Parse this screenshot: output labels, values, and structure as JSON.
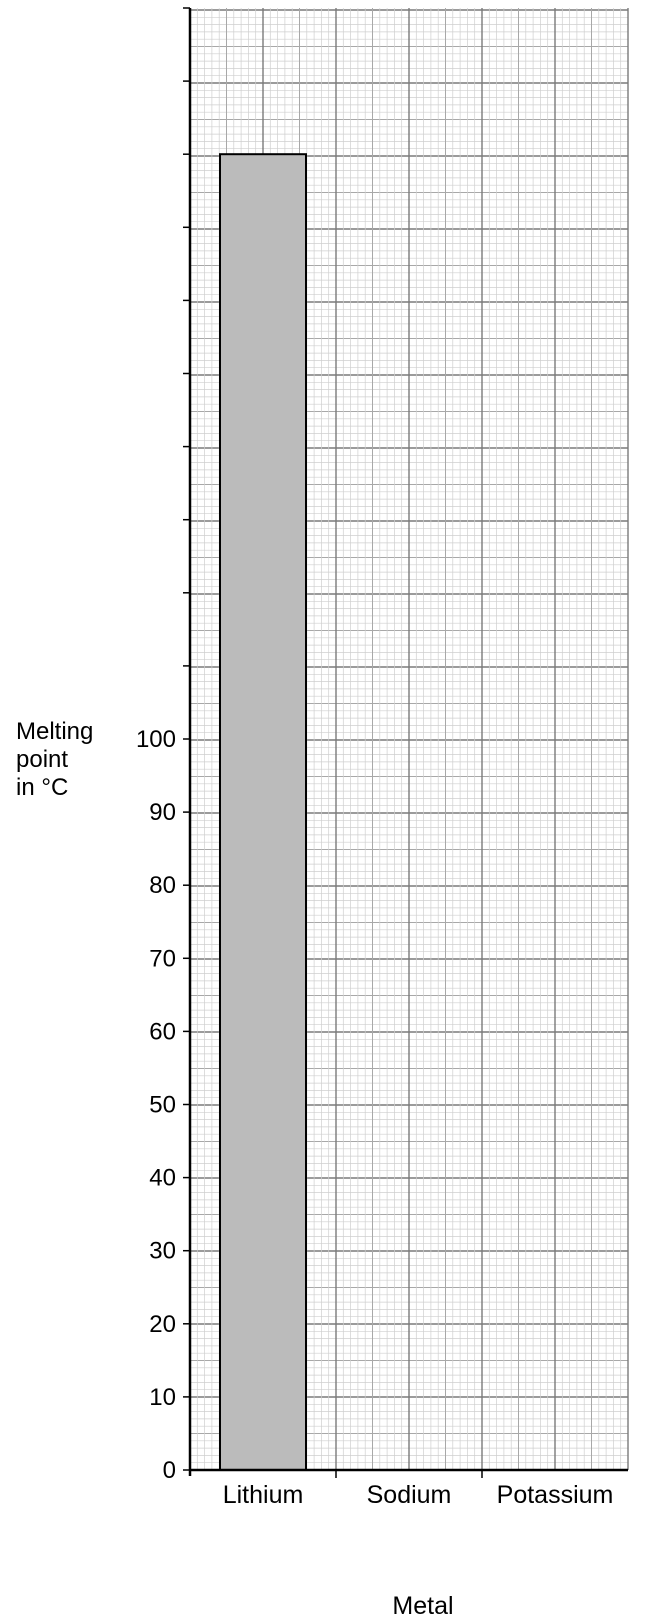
{
  "chart_data": {
    "type": "bar",
    "title": "",
    "xlabel": "Metal",
    "ylabel_lines": [
      "Melting",
      "point",
      "in °C"
    ],
    "categories": [
      "Lithium",
      "Sodium",
      "Potassium"
    ],
    "values": [
      180,
      null,
      null
    ],
    "ylim": [
      0,
      200
    ],
    "yticks_labeled": [
      0,
      10,
      20,
      30,
      40,
      50,
      60,
      70,
      80,
      90,
      100
    ],
    "grid": true,
    "bar_color": "#bbbbbb"
  }
}
